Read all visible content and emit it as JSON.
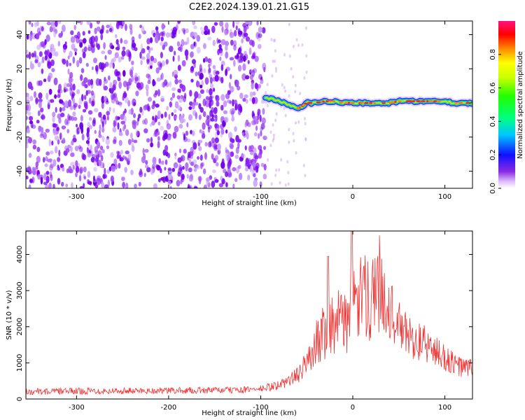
{
  "page_title": "C2E2.2024.139.01.21.G15",
  "colors": {
    "snr_line": "#ee3333",
    "axis": "#000000"
  },
  "chart_data": [
    {
      "id": "spectrogram",
      "type": "heatmap",
      "xlabel": "Height of straight line (km)",
      "ylabel": "Frequency (Hz)",
      "xlim": [
        -355,
        130
      ],
      "ylim": [
        -50,
        48
      ],
      "xticks": [
        -300,
        -200,
        -100,
        0,
        100
      ],
      "xtick_labels": [
        "-300",
        "-200",
        "-100",
        "0",
        "100"
      ],
      "yticks": [
        -40,
        -20,
        0,
        20,
        40
      ],
      "ytick_labels": [
        "-40",
        "-20",
        "0",
        "20",
        "40"
      ],
      "noise_region_x": [
        -355,
        -95
      ],
      "signal_trace": {
        "x": [
          -95,
          -85,
          -75,
          -65,
          -60,
          -55,
          -50,
          -40,
          -30,
          -20,
          -10,
          0,
          10,
          20,
          30,
          40,
          50,
          60,
          70,
          80,
          90,
          100,
          110,
          120,
          130
        ],
        "freq": [
          3,
          2,
          0,
          -2,
          -3,
          -2,
          0,
          0,
          1,
          1,
          0,
          0,
          0,
          0,
          0,
          0,
          1,
          1,
          1,
          1,
          1,
          1,
          0,
          0,
          0
        ]
      },
      "colorbar": {
        "label": "Normalized spectral amplitude",
        "range": [
          0.0,
          1.0
        ],
        "ticks": [
          0.0,
          0.2,
          0.4,
          0.6,
          0.8
        ],
        "tick_labels": [
          "0.0",
          "0.2",
          "0.4",
          "0.6",
          "0.8"
        ]
      }
    },
    {
      "id": "snr",
      "type": "line",
      "xlabel": "Height of straight line (km)",
      "ylabel": "SNR (10 * v/v)",
      "xlim": [
        -355,
        130
      ],
      "ylim": [
        0,
        4650
      ],
      "xticks": [
        -300,
        -200,
        -100,
        0,
        100
      ],
      "xtick_labels": [
        "-300",
        "-200",
        "-100",
        "0",
        "100"
      ],
      "yticks": [
        0,
        1000,
        2000,
        3000,
        4000
      ],
      "ytick_labels": [
        "0",
        "1000",
        "2000",
        "3000",
        "4000"
      ],
      "series": [
        {
          "name": "SNR",
          "x": [
            -355,
            -300,
            -200,
            -120,
            -100,
            -80,
            -60,
            -50,
            -40,
            -30,
            -25,
            -20,
            -10,
            0,
            10,
            20,
            25,
            30,
            40,
            50,
            60,
            70,
            80,
            90,
            100,
            110,
            120,
            130
          ],
          "y": [
            200,
            220,
            230,
            250,
            280,
            380,
            650,
            1000,
            1500,
            2000,
            2250,
            2000,
            2200,
            2500,
            2750,
            2950,
            3100,
            3150,
            2500,
            2000,
            1750,
            1600,
            1500,
            1300,
            1150,
            950,
            870,
            850
          ]
        }
      ],
      "peaks": [
        {
          "x": -27,
          "y": 3950
        },
        {
          "x": -1,
          "y": 4650
        }
      ]
    }
  ]
}
